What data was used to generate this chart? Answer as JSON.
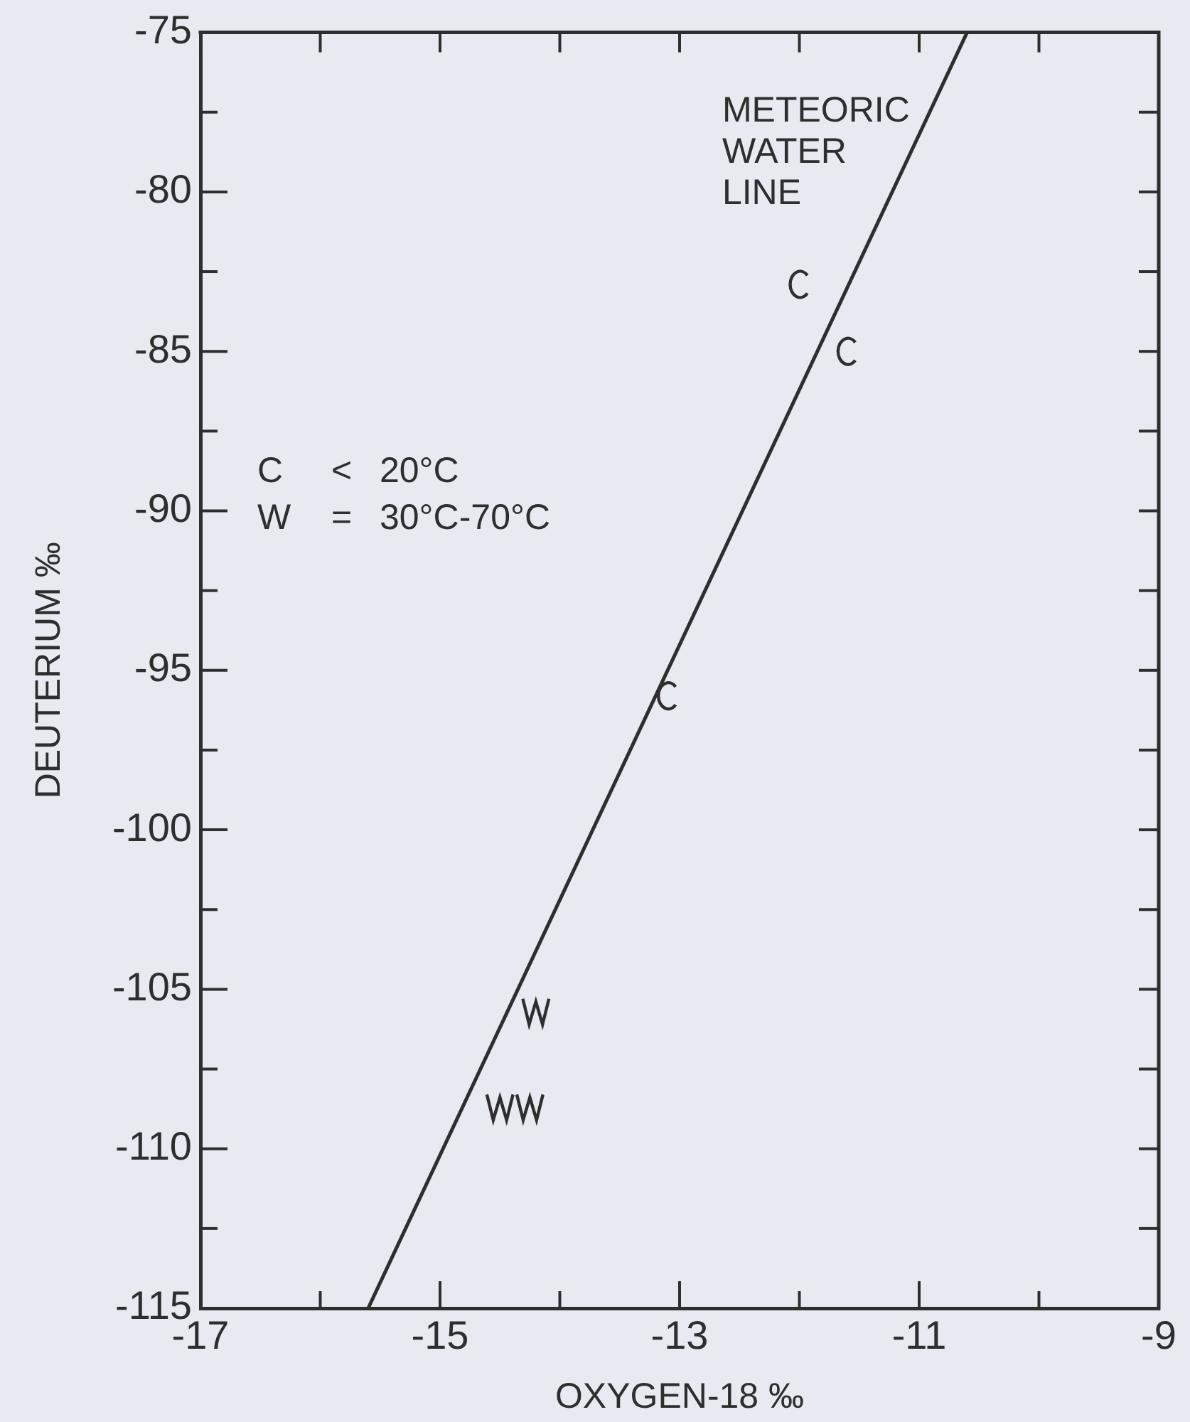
{
  "chart_data": {
    "type": "scatter",
    "xlabel": "OXYGEN-18 ‰",
    "ylabel": "DEUTERIUM ‰",
    "xlim": [
      -17,
      -9
    ],
    "xticks": [
      -17,
      {
        "value": -16,
        "label": null
      },
      -15,
      {
        "value": -14,
        "label": null
      },
      -13,
      {
        "value": -12,
        "label": null
      },
      -11,
      {
        "value": -10,
        "label": null
      },
      -9
    ],
    "ylim": [
      -115,
      -75
    ],
    "yticks": [
      -115,
      {
        "value": -112.5,
        "label": null
      },
      -110,
      {
        "value": -107.5,
        "label": null
      },
      -105,
      {
        "value": -102.5,
        "label": null
      },
      -100,
      {
        "value": -97.5,
        "label": null
      },
      -95,
      {
        "value": -92.5,
        "label": null
      },
      -90,
      {
        "value": -87.5,
        "label": null
      },
      -85,
      {
        "value": -82.5,
        "label": null
      },
      -80,
      {
        "value": -77.5,
        "label": null
      },
      -75
    ],
    "grid": false,
    "legend": "left",
    "series": [
      {
        "name": "C < 20°C",
        "color": "#2e2e2e",
        "x": [
          -12.0,
          -11.6,
          -13.1
        ],
        "values": [
          -82.9,
          -85.0,
          -95.8
        ]
      },
      {
        "name": "W = 30°C-70°C",
        "color": "#2e2e2e",
        "x": [
          -14.2,
          -14.5,
          -14.25
        ],
        "values": [
          -105.7,
          -108.7,
          -108.7
        ]
      },
      {
        "name": "METEORIC WATER LINE",
        "type": "line",
        "color": "#2e2e2e",
        "x": [
          -15.6,
          -10.6
        ],
        "values": [
          -115,
          -75
        ],
        "marker": "none",
        "line_style": "solid"
      }
    ]
  }
}
